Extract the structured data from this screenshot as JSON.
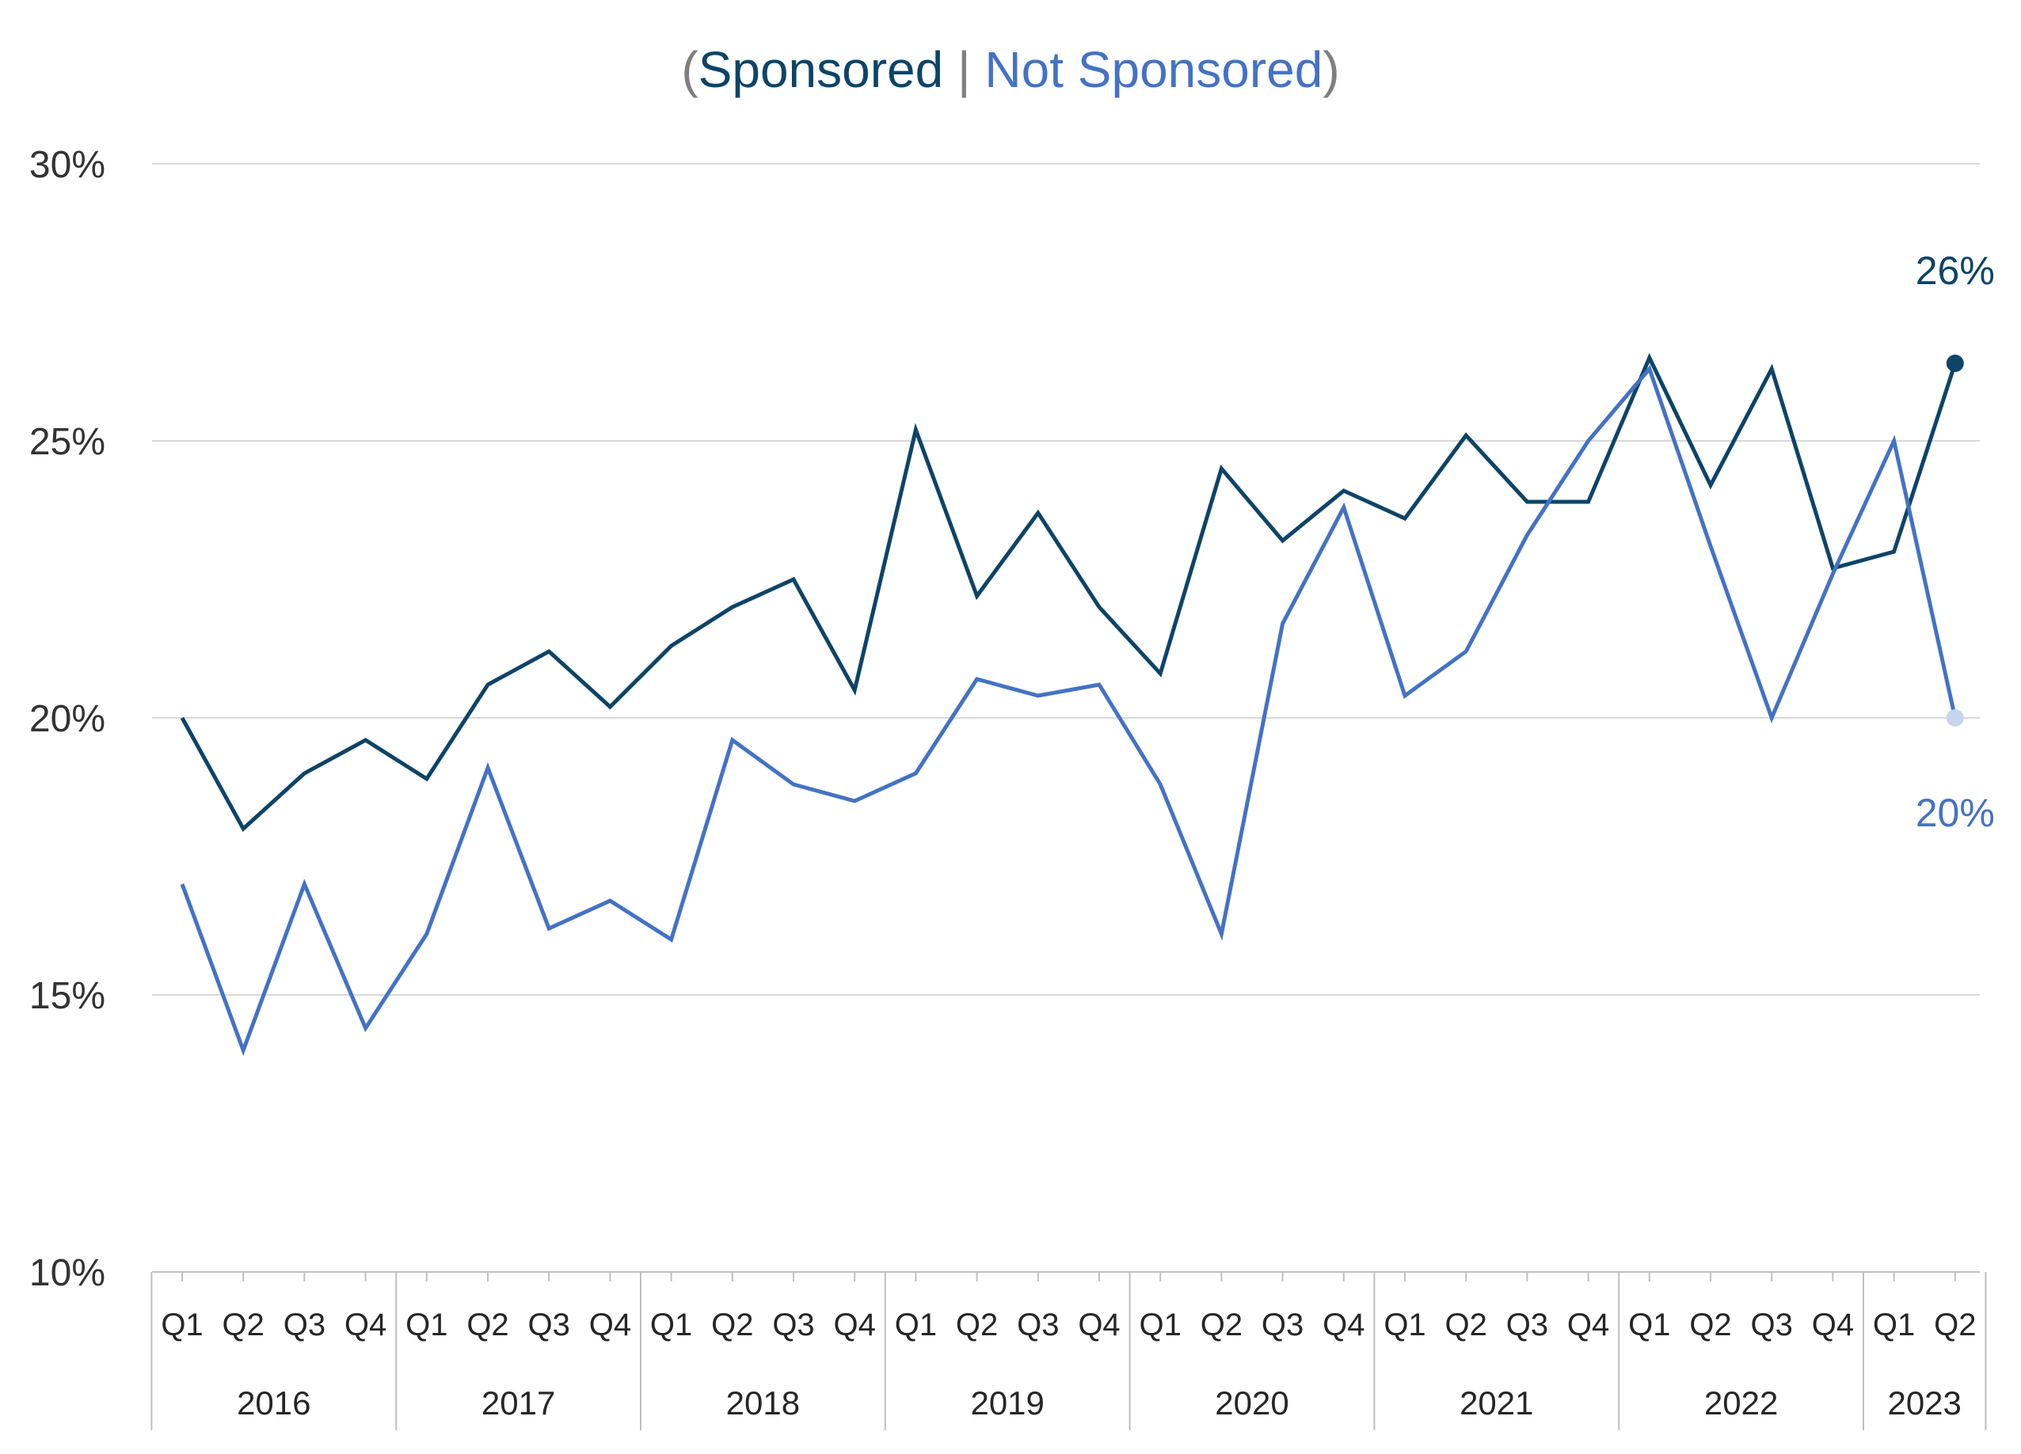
{
  "chart_data": {
    "type": "line",
    "title_parts": [
      "(",
      "Sponsored",
      " | ",
      "Not Sponsored",
      ")"
    ],
    "x": [
      "Q1",
      "Q2",
      "Q3",
      "Q4",
      "Q1",
      "Q2",
      "Q3",
      "Q4",
      "Q1",
      "Q2",
      "Q3",
      "Q4",
      "Q1",
      "Q2",
      "Q3",
      "Q4",
      "Q1",
      "Q2",
      "Q3",
      "Q4",
      "Q1",
      "Q2",
      "Q3",
      "Q4",
      "Q1",
      "Q2",
      "Q3",
      "Q4",
      "Q1",
      "Q2"
    ],
    "year_groups": [
      {
        "label": "2016",
        "count": 4
      },
      {
        "label": "2017",
        "count": 4
      },
      {
        "label": "2018",
        "count": 4
      },
      {
        "label": "2019",
        "count": 4
      },
      {
        "label": "2020",
        "count": 4
      },
      {
        "label": "2021",
        "count": 4
      },
      {
        "label": "2022",
        "count": 4
      },
      {
        "label": "2023",
        "count": 2
      }
    ],
    "series": [
      {
        "key": "sponsored",
        "color": "#0d4468",
        "values": [
          20.0,
          18.0,
          19.0,
          19.6,
          18.9,
          20.6,
          21.2,
          20.2,
          21.3,
          22.0,
          22.5,
          20.5,
          25.2,
          22.2,
          23.7,
          22.0,
          20.8,
          24.5,
          23.2,
          24.1,
          23.6,
          25.1,
          23.9,
          23.9,
          26.5,
          24.2,
          26.3,
          22.7,
          23.0,
          26.4
        ],
        "end_label": "26%",
        "end_marker_color": "#0d4468"
      },
      {
        "key": "not_sponsored",
        "color": "#4472c4",
        "values": [
          17.0,
          14.0,
          17.0,
          14.4,
          16.1,
          19.1,
          16.2,
          16.7,
          16.0,
          19.6,
          18.8,
          18.5,
          19.0,
          20.7,
          20.4,
          20.6,
          18.8,
          16.1,
          21.7,
          23.8,
          20.4,
          21.2,
          23.3,
          25.0,
          26.3,
          23.1,
          20.0,
          22.6,
          25.0,
          20.0
        ],
        "end_label": "20%",
        "end_marker_color": "#c6d5ee"
      }
    ],
    "ylim": [
      10,
      30
    ],
    "yticks": [
      10,
      15,
      20,
      25,
      30
    ],
    "ytick_labels": [
      "10%",
      "15%",
      "20%",
      "25%",
      "30%"
    ],
    "grid": true,
    "colors": {
      "title_paren": "#7f7f7f",
      "gridline": "#d9d9d9",
      "axis": "#bfbfbf"
    }
  }
}
